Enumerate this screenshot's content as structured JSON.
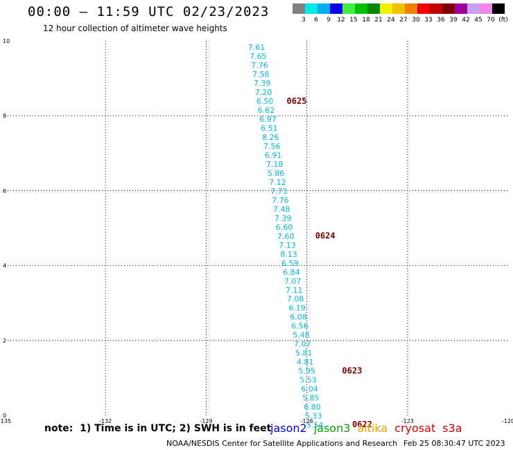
{
  "header": {
    "title": "00:00 – 11:59 UTC 02/23/2023",
    "subtitle": "12 hour collection of altimeter wave heights"
  },
  "colorbar": {
    "colors": [
      "#808080",
      "#00e8e8",
      "#00b0f0",
      "#0000f0",
      "#40f040",
      "#00c000",
      "#008800",
      "#f0f000",
      "#f0c000",
      "#f08000",
      "#f00000",
      "#c00000",
      "#800000",
      "#a000a0",
      "#c8a0f0",
      "#f088e8",
      "#000000"
    ],
    "ticks": [
      "3",
      "6",
      "9",
      "12",
      "15",
      "18",
      "21",
      "24",
      "27",
      "30",
      "33",
      "36",
      "39",
      "42",
      "45",
      "70",
      "(ft)"
    ]
  },
  "map": {
    "lon_labels": [
      "-135",
      "-132",
      "-129",
      "-126",
      "-123",
      "-120"
    ],
    "lat_labels": [
      "10",
      "8",
      "6",
      "4",
      "2",
      "0"
    ],
    "lon_range": [
      -135,
      -120
    ],
    "lat_range": [
      0,
      10
    ],
    "swh_color": "#00b8d8",
    "time_color": "#7a0000",
    "track": [
      {
        "value": "7.61",
        "lon": -127.5,
        "lat": 9.83
      },
      {
        "value": "7.65",
        "lon": -127.45,
        "lat": 9.59
      },
      {
        "value": "7.76",
        "lon": -127.41,
        "lat": 9.35
      },
      {
        "value": "7.58",
        "lon": -127.37,
        "lat": 9.11
      },
      {
        "value": "7.39",
        "lon": -127.33,
        "lat": 8.87
      },
      {
        "value": "7.20",
        "lon": -127.29,
        "lat": 8.63
      },
      {
        "value": "6.50",
        "lon": -127.25,
        "lat": 8.39
      },
      {
        "value": "6.62",
        "lon": -127.21,
        "lat": 8.15
      },
      {
        "value": "6.97",
        "lon": -127.16,
        "lat": 7.91
      },
      {
        "value": "6.51",
        "lon": -127.12,
        "lat": 7.67
      },
      {
        "value": "8.26",
        "lon": -127.08,
        "lat": 7.43
      },
      {
        "value": "7.56",
        "lon": -127.04,
        "lat": 7.19
      },
      {
        "value": "6.91",
        "lon": -127.0,
        "lat": 6.95
      },
      {
        "value": "7.18",
        "lon": -126.96,
        "lat": 6.71
      },
      {
        "value": "5.86",
        "lon": -126.92,
        "lat": 6.47
      },
      {
        "value": "7.12",
        "lon": -126.87,
        "lat": 6.23
      },
      {
        "value": "7.73",
        "lon": -126.83,
        "lat": 5.99
      },
      {
        "value": "7.76",
        "lon": -126.79,
        "lat": 5.75
      },
      {
        "value": "7.48",
        "lon": -126.75,
        "lat": 5.51
      },
      {
        "value": "7.39",
        "lon": -126.71,
        "lat": 5.27
      },
      {
        "value": "6.60",
        "lon": -126.67,
        "lat": 5.03
      },
      {
        "value": "7.60",
        "lon": -126.63,
        "lat": 4.79
      },
      {
        "value": "7.13",
        "lon": -126.58,
        "lat": 4.55
      },
      {
        "value": "8.13",
        "lon": -126.54,
        "lat": 4.31
      },
      {
        "value": "6.59",
        "lon": -126.5,
        "lat": 4.07
      },
      {
        "value": "6.84",
        "lon": -126.46,
        "lat": 3.83
      },
      {
        "value": "7.07",
        "lon": -126.42,
        "lat": 3.59
      },
      {
        "value": "7.11",
        "lon": -126.38,
        "lat": 3.35
      },
      {
        "value": "7.08",
        "lon": -126.34,
        "lat": 3.11
      },
      {
        "value": "6.19",
        "lon": -126.29,
        "lat": 2.87
      },
      {
        "value": "6.08",
        "lon": -126.25,
        "lat": 2.63
      },
      {
        "value": "6.56",
        "lon": -126.21,
        "lat": 2.39
      },
      {
        "value": "5.48",
        "lon": -126.17,
        "lat": 2.15
      },
      {
        "value": "7.07",
        "lon": -126.13,
        "lat": 1.91
      },
      {
        "value": "5.81",
        "lon": -126.09,
        "lat": 1.67
      },
      {
        "value": "4.81",
        "lon": -126.05,
        "lat": 1.43
      },
      {
        "value": "5.95",
        "lon": -126.0,
        "lat": 1.19
      },
      {
        "value": "5.53",
        "lon": -125.96,
        "lat": 0.95
      },
      {
        "value": "6.04",
        "lon": -125.92,
        "lat": 0.71
      },
      {
        "value": "5.85",
        "lon": -125.88,
        "lat": 0.47
      },
      {
        "value": "6.80",
        "lon": -125.84,
        "lat": 0.23
      },
      {
        "value": "5.33",
        "lon": -125.8,
        "lat": -0.01
      },
      {
        "value": "5.54",
        "lon": -125.76,
        "lat": -0.25
      }
    ],
    "time_labels": [
      {
        "label": "0625",
        "lon": -126.6,
        "lat": 8.39
      },
      {
        "label": "0624",
        "lon": -125.75,
        "lat": 4.8
      },
      {
        "label": "0623",
        "lon": -124.95,
        "lat": 1.19
      },
      {
        "label": "0622",
        "lon": -124.65,
        "lat": -0.24
      }
    ]
  },
  "footer": {
    "note": "note:  1) Time is in UTC; 2) SWH is in feet",
    "satellites": [
      {
        "name": "jason2",
        "color": "#0000e0"
      },
      {
        "name": "jason3",
        "color": "#00a000"
      },
      {
        "name": "altika",
        "color": "#f0a000"
      },
      {
        "name": "cryosat",
        "color": "#e00000"
      },
      {
        "name": "s3a",
        "color": "#c00000"
      }
    ],
    "credit": "NOAA/NESDIS Center for Satellite Applications and Research",
    "timestamp": "Feb 25 08:30:47 UTC 2023"
  }
}
